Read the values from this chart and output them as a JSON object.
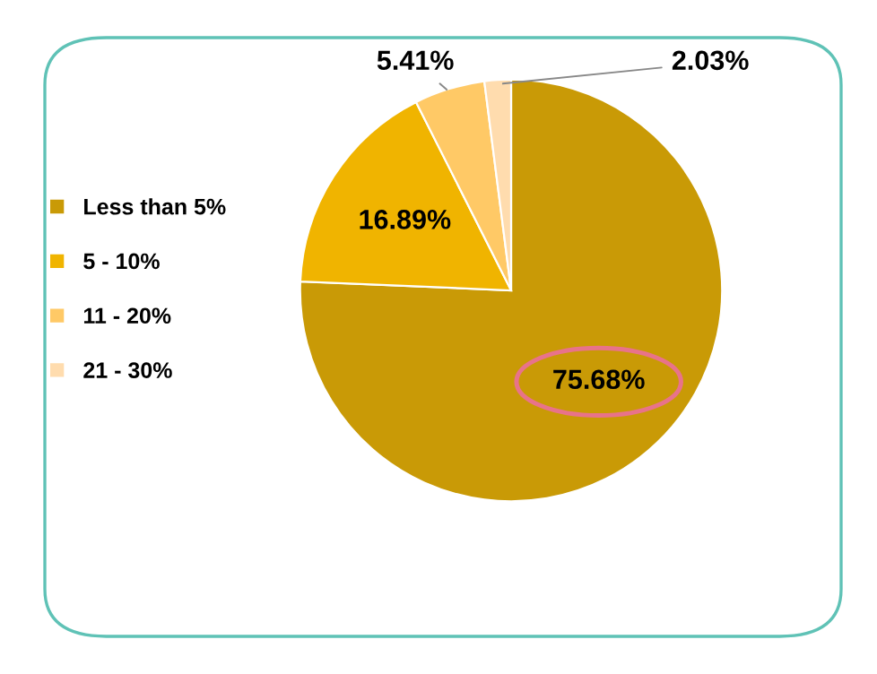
{
  "chart_data": {
    "type": "pie",
    "categories": [
      "Less than 5%",
      "5 - 10%",
      "11 - 20%",
      "21 - 30%"
    ],
    "values": [
      75.68,
      16.89,
      5.41,
      2.03
    ],
    "colors": [
      "#c99a06",
      "#f0b400",
      "#ffc966",
      "#ffdcae"
    ],
    "value_labels": [
      "75.68%",
      "16.89%",
      "5.41%",
      "2.03%"
    ],
    "legend": "left"
  }
}
